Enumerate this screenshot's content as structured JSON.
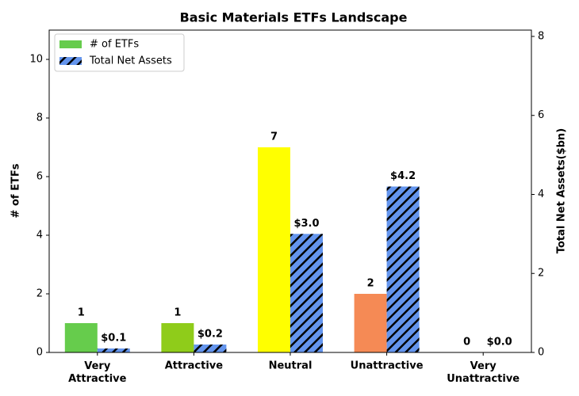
{
  "chart_data": {
    "type": "bar",
    "title": "Basic Materials ETFs Landscape",
    "categories": [
      "Very\nAttractive",
      "Attractive",
      "Neutral",
      "Unattractive",
      "Very\nUnattractive"
    ],
    "ylabel": "# of ETFs",
    "y2label": "Total Net Assets($bn)",
    "ylim": [
      0,
      11
    ],
    "yticks": [
      0,
      2,
      4,
      6,
      8,
      10
    ],
    "y2lim": [
      0,
      8.16
    ],
    "y2ticks": [
      0,
      2,
      4,
      6,
      8
    ],
    "legend": "upper left",
    "series": [
      {
        "name": "# of ETFs",
        "color": "#66cc4c",
        "colors": [
          "#66cc4c",
          "#8fcc1a",
          "#ffff00",
          "#f58a55",
          "#e8453c"
        ],
        "values": [
          1,
          1,
          7,
          2,
          0
        ]
      },
      {
        "name": "Total Net Assets",
        "color": "#6495ed",
        "hatch": true,
        "axis": "y2",
        "values": [
          0.1,
          0.2,
          3.0,
          4.2,
          0.0
        ],
        "value_labels": [
          "$0.1",
          "$0.2",
          "$3.0",
          "$4.2",
          "$0.0"
        ]
      }
    ]
  }
}
